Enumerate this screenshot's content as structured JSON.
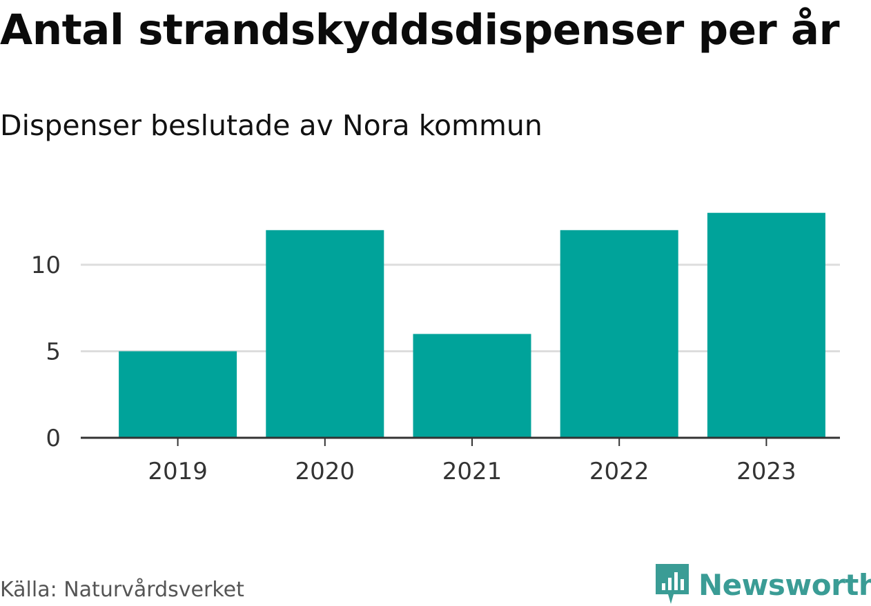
{
  "header": {
    "title": "Antal strandskyddsdispenser per år",
    "subtitle": "Dispenser beslutade av Nora kommun"
  },
  "footer": {
    "source": "Källa: Naturvårdsverket",
    "brand": "Newsworthy"
  },
  "colors": {
    "bar": "#00a39a",
    "grid": "#dddddd",
    "axis": "#333333",
    "brand": "#3a9c95"
  },
  "chart_data": {
    "type": "bar",
    "title": "Antal strandskyddsdispenser per år",
    "subtitle": "Dispenser beslutade av Nora kommun",
    "categories": [
      "2019",
      "2020",
      "2021",
      "2022",
      "2023"
    ],
    "values": [
      5,
      12,
      6,
      12,
      13
    ],
    "yticks": [
      0,
      5,
      10
    ],
    "ytick_labels": [
      "0",
      "5",
      "10"
    ],
    "ylim": [
      0,
      13
    ],
    "xlabel": "",
    "ylabel": "",
    "grid": true,
    "legend": "none"
  }
}
